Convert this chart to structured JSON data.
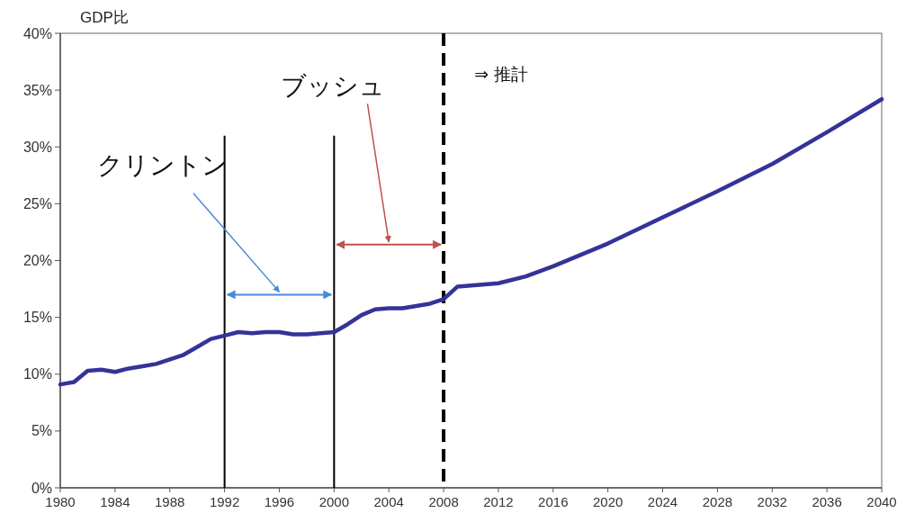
{
  "chart_data": {
    "type": "line",
    "ylabel": "GDP比",
    "x": [
      1980,
      1981,
      1982,
      1983,
      1984,
      1985,
      1986,
      1987,
      1988,
      1989,
      1990,
      1991,
      1992,
      1993,
      1994,
      1995,
      1996,
      1997,
      1998,
      1999,
      2000,
      2001,
      2002,
      2003,
      2004,
      2005,
      2006,
      2007,
      2008,
      2009,
      2010,
      2012,
      2014,
      2016,
      2020,
      2024,
      2028,
      2032,
      2036,
      2040
    ],
    "series": [
      {
        "color": "#333399",
        "values": [
          9.1,
          9.3,
          10.3,
          10.4,
          10.2,
          10.5,
          10.7,
          10.9,
          11.3,
          11.7,
          12.4,
          13.1,
          13.4,
          13.7,
          13.6,
          13.7,
          13.7,
          13.5,
          13.5,
          13.6,
          13.7,
          14.4,
          15.2,
          15.7,
          15.8,
          15.8,
          16.0,
          16.2,
          16.6,
          17.7,
          17.8,
          18.0,
          18.6,
          19.5,
          21.5,
          23.8,
          26.1,
          28.5,
          31.3,
          34.2
        ]
      }
    ],
    "xlim": [
      1980,
      2040
    ],
    "xticks": [
      1980,
      1984,
      1988,
      1992,
      1996,
      2000,
      2004,
      2008,
      2012,
      2016,
      2020,
      2024,
      2028,
      2032,
      2036,
      2040
    ],
    "ylim": [
      0,
      40
    ],
    "yticks": [
      {
        "value": 0,
        "label": "0%"
      },
      {
        "value": 5,
        "label": "5%"
      },
      {
        "value": 10,
        "label": "10%"
      },
      {
        "value": 15,
        "label": "15%"
      },
      {
        "value": 20,
        "label": "20%"
      },
      {
        "value": 25,
        "label": "25%"
      },
      {
        "value": 30,
        "label": "30%"
      },
      {
        "value": 35,
        "label": "35%"
      },
      {
        "value": 40,
        "label": "40%"
      }
    ],
    "ref_lines": [
      {
        "axis": "x",
        "value": 1992,
        "color": "#000000",
        "line_style": "solid"
      },
      {
        "axis": "x",
        "value": 2000,
        "color": "#000000",
        "line_style": "solid"
      },
      {
        "axis": "x",
        "value": 2008,
        "color": "#000000",
        "line_style": "dashed"
      }
    ],
    "annotations": [
      "クリントン",
      "ブッシュ",
      "⇒ 推計"
    ],
    "grid": false,
    "line_style": "solid"
  }
}
